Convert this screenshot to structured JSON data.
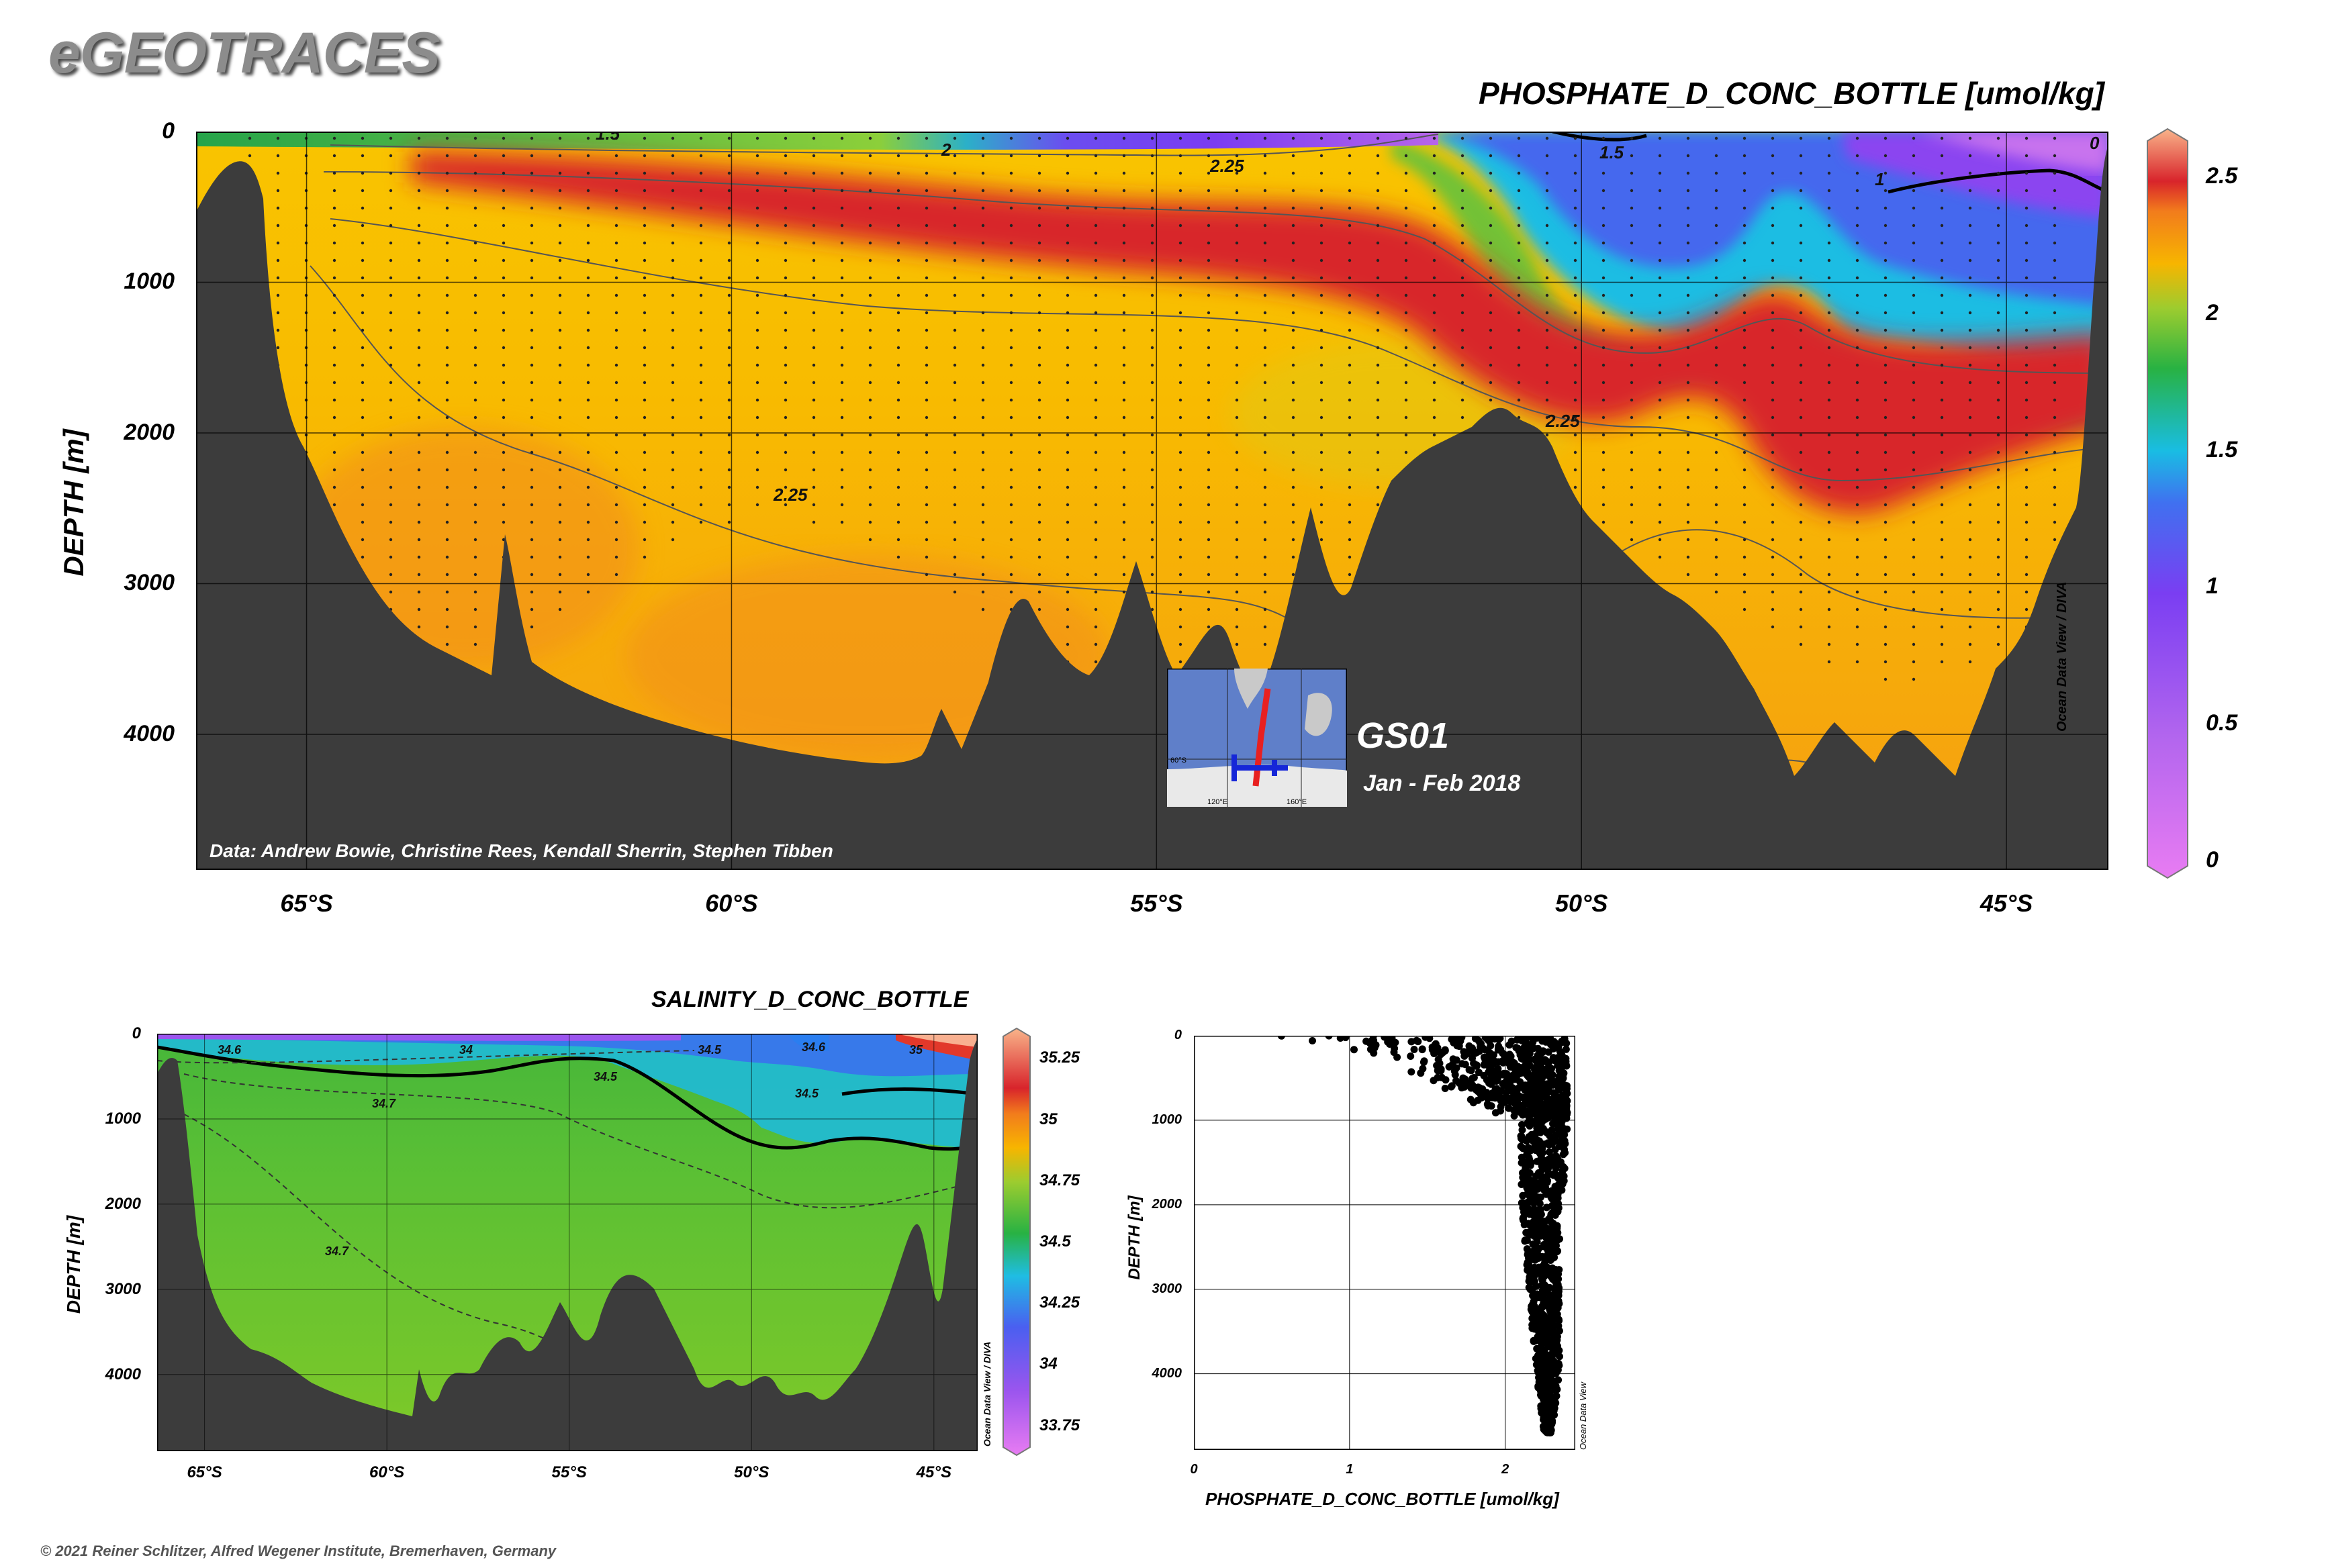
{
  "brand": "eGEOTRACES",
  "copyright": "© 2021 Reiner Schlitzer, Alfred Wegener Institute, Bremerhaven, Germany",
  "colors": {
    "topography": "#3c3c3c",
    "section_fill": "#f7b500",
    "red_band": "#d8242b",
    "contour_line": "#444444"
  },
  "chart_data": [
    {
      "id": "phosphate_section",
      "type": "heatmap",
      "title": "PHOSPHATE_D_CONC_BOTTLE [umol/kg]",
      "ylabel": "DEPTH [m]",
      "xlabel": "",
      "x_tick_labels": [
        "65°S",
        "60°S",
        "55°S",
        "50°S",
        "45°S"
      ],
      "x_ticks_lat": [
        -65,
        -60,
        -55,
        -50,
        -45
      ],
      "xlim_lat": [
        -66.3,
        -43.8
      ],
      "y_ticks": [
        0,
        1000,
        2000,
        3000,
        4000
      ],
      "y_tick_labels": [
        "0",
        "1000",
        "2000",
        "3000",
        "4000"
      ],
      "ylim": [
        0,
        4900
      ],
      "y_inverted": true,
      "grid": true,
      "colorbar": {
        "ticks": [
          0,
          0.5,
          1,
          1.5,
          2,
          2.5
        ],
        "tick_labels": [
          "0",
          "0.5",
          "1",
          "1.5",
          "2",
          "2.5"
        ],
        "range": [
          0,
          2.65
        ],
        "label": "Ocean Data View / DIVA"
      },
      "contour_labels": [
        "1.5",
        "2",
        "2.25",
        "1.5",
        "0",
        "1",
        "2.25",
        "2.25"
      ],
      "credit": "Data: Andrew Bowie, Christine Rees, Kendall Sherrin, Stephen Tibben",
      "inset": {
        "section_name": "GS01",
        "dates": "Jan - Feb 2018",
        "lon_labels": [
          "120°E",
          "160°E"
        ],
        "lat_label": "60°S"
      }
    },
    {
      "id": "salinity_section",
      "type": "heatmap",
      "title": "SALINITY_D_CONC_BOTTLE",
      "ylabel": "DEPTH [m]",
      "xlabel": "",
      "x_tick_labels": [
        "65°S",
        "60°S",
        "55°S",
        "50°S",
        "45°S"
      ],
      "x_ticks_lat": [
        -65,
        -60,
        -55,
        -50,
        -45
      ],
      "xlim_lat": [
        -66.3,
        -43.8
      ],
      "y_ticks": [
        0,
        1000,
        2000,
        3000,
        4000
      ],
      "y_tick_labels": [
        "0",
        "1000",
        "2000",
        "3000",
        "4000"
      ],
      "ylim": [
        0,
        4900
      ],
      "y_inverted": true,
      "grid": true,
      "colorbar": {
        "ticks": [
          33.75,
          34,
          34.25,
          34.5,
          34.75,
          35,
          35.25
        ],
        "tick_labels": [
          "33.75",
          "34",
          "34.25",
          "34.5",
          "34.75",
          "35",
          "35.25"
        ],
        "range": [
          33.65,
          35.35
        ],
        "label": "Ocean Data View / DIVA"
      },
      "contour_labels": [
        "34.6",
        "34",
        "34.7",
        "34.5",
        "34.5",
        "34.6",
        "35",
        "34.5",
        "34.7"
      ]
    },
    {
      "id": "phosphate_profile",
      "type": "scatter",
      "title": "",
      "xlabel": "PHOSPHATE_D_CONC_BOTTLE [umol/kg]",
      "ylabel": "DEPTH [m]",
      "x_ticks": [
        0,
        1,
        2
      ],
      "x_tick_labels": [
        "0",
        "1",
        "2"
      ],
      "xlim": [
        0,
        2.45
      ],
      "y_ticks": [
        0,
        1000,
        2000,
        3000,
        4000
      ],
      "y_tick_labels": [
        "0",
        "1000",
        "2000",
        "3000",
        "4000"
      ],
      "ylim": [
        0,
        4900
      ],
      "y_inverted": true,
      "grid": true,
      "side_label": "Ocean Data View",
      "points_summary": [
        {
          "depth": 0,
          "x_min": 0.3,
          "x_max": 2.4
        },
        {
          "depth": 100,
          "x_min": 0.9,
          "x_max": 2.4
        },
        {
          "depth": 250,
          "x_min": 1.1,
          "x_max": 2.4
        },
        {
          "depth": 500,
          "x_min": 1.4,
          "x_max": 2.4
        },
        {
          "depth": 750,
          "x_min": 1.6,
          "x_max": 2.4
        },
        {
          "depth": 1000,
          "x_min": 2.1,
          "x_max": 2.4
        },
        {
          "depth": 1500,
          "x_min": 2.1,
          "x_max": 2.4
        },
        {
          "depth": 2000,
          "x_min": 2.1,
          "x_max": 2.35
        },
        {
          "depth": 3000,
          "x_min": 2.15,
          "x_max": 2.35
        },
        {
          "depth": 4000,
          "x_min": 2.2,
          "x_max": 2.35
        },
        {
          "depth": 4700,
          "x_min": 2.25,
          "x_max": 2.3
        }
      ]
    }
  ]
}
